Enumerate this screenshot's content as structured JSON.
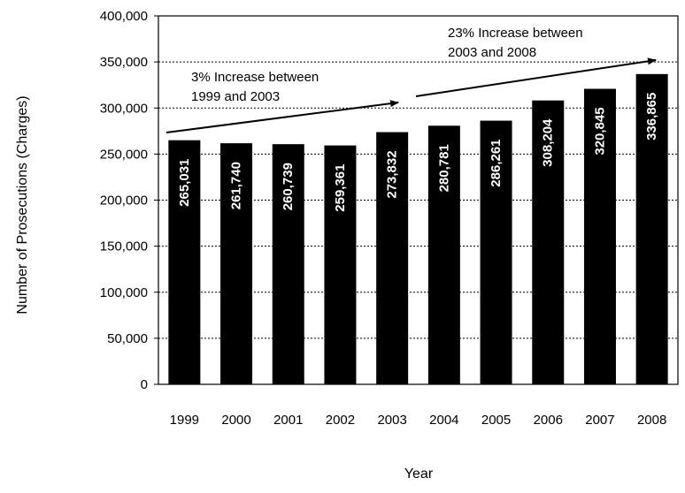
{
  "chart_data": {
    "type": "bar",
    "xlabel": "Year",
    "ylabel": "Number of Prosecutions (Charges)",
    "ylim": [
      0,
      400000
    ],
    "yticks": [
      0,
      50000,
      100000,
      150000,
      200000,
      250000,
      300000,
      350000,
      400000
    ],
    "ytick_labels": [
      "0",
      "50,000",
      "100,000",
      "150,000",
      "200,000",
      "250,000",
      "300,000",
      "350,000",
      "400,000"
    ],
    "grid": true,
    "categories": [
      "1999",
      "2000",
      "2001",
      "2002",
      "2003",
      "2004",
      "2005",
      "2006",
      "2007",
      "2008"
    ],
    "values": [
      265031,
      261740,
      260739,
      259361,
      273832,
      280781,
      286261,
      308204,
      320845,
      336865
    ],
    "value_labels": [
      "265,031",
      "261,740",
      "260,739",
      "259,361",
      "273,832",
      "280,781",
      "286,261",
      "308,204",
      "320,845",
      "336,865"
    ],
    "bar_color": "#000000",
    "annotations": [
      {
        "lines": [
          "3% Increase between",
          "1999 and 2003"
        ]
      },
      {
        "lines": [
          "23% Increase between",
          "2003 and 2008"
        ]
      }
    ]
  }
}
